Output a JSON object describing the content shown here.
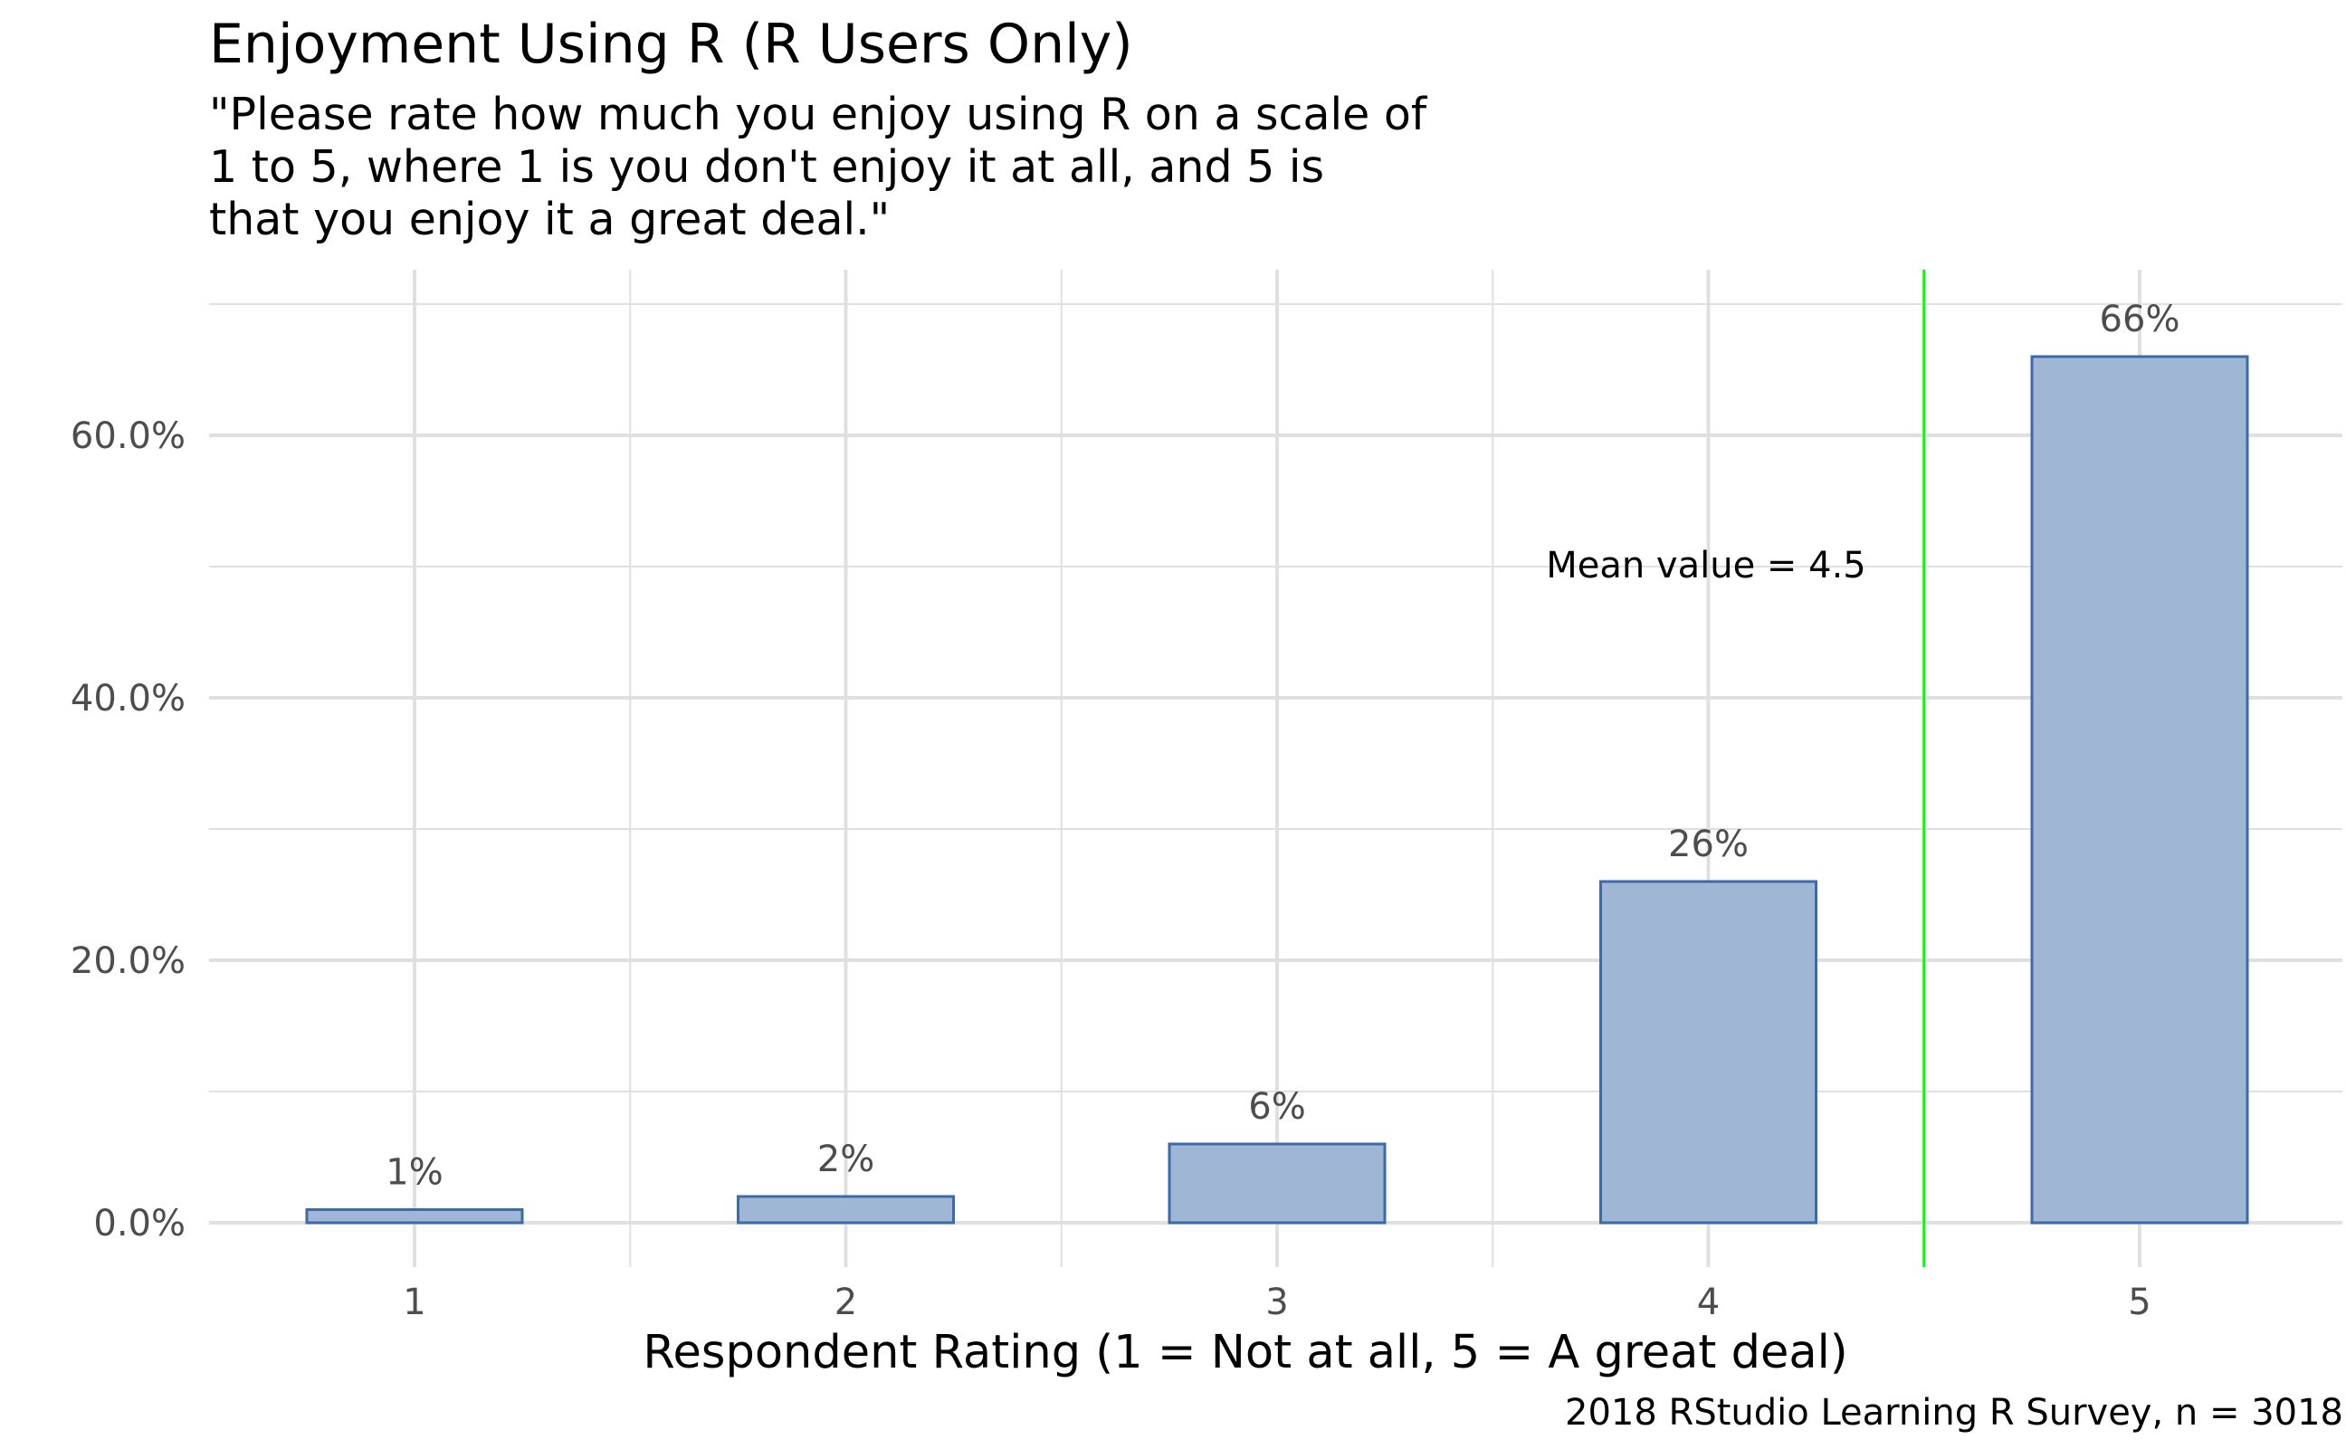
{
  "title": "Enjoyment Using R (R Users Only)",
  "subtitle_lines": [
    "\"Please rate how much you enjoy using R on a scale of",
    "1 to 5, where 1 is you don't enjoy it at all, and 5 is",
    "that you enjoy it a great deal.\""
  ],
  "caption": "2018 RStudio Learning R Survey, n = 3018",
  "chart_data": {
    "type": "bar",
    "categories": [
      "1",
      "2",
      "3",
      "4",
      "5"
    ],
    "values": [
      1,
      2,
      6,
      26,
      66
    ],
    "data_labels": [
      "1%",
      "2%",
      "6%",
      "26%",
      "66%"
    ],
    "xlabel": "Respondent Rating (1 = Not at all, 5 = A great deal)",
    "ylabel": "",
    "ylim": [
      0,
      70
    ],
    "y_ticks": [
      0,
      20,
      40,
      60
    ],
    "y_tick_labels": [
      "0.0%",
      "20.0%",
      "40.0%",
      "60.0%"
    ],
    "grid": true,
    "legend": "none",
    "mean_line": {
      "value": 4.5,
      "label": "Mean value = 4.5",
      "color": "#00ff00"
    },
    "colors": {
      "bar_fill": "#a0b6d5",
      "bar_stroke": "#3d6aa8",
      "grid": "#e0e0e0",
      "tick_text": "#4d4d4d"
    }
  }
}
